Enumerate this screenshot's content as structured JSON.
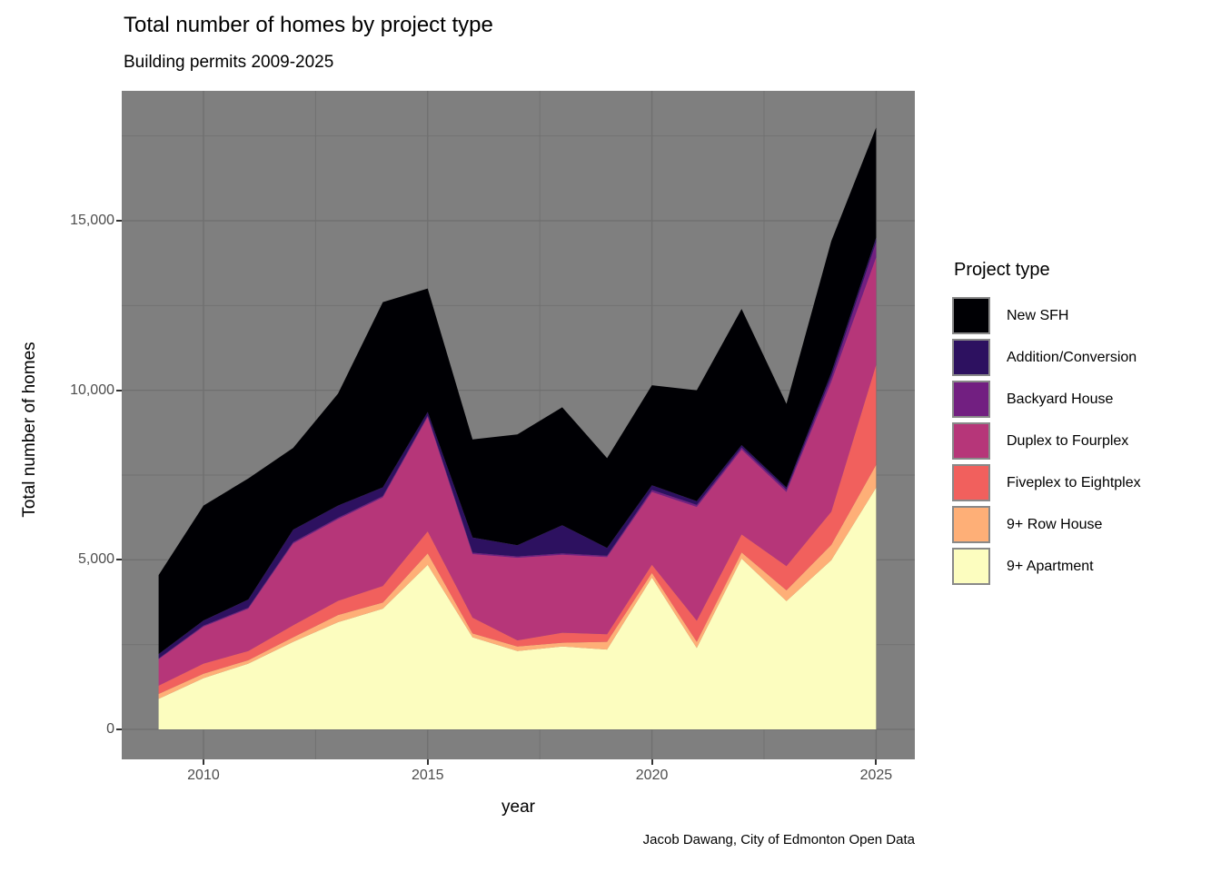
{
  "title": "Total number of homes by project type",
  "subtitle": "Building permits 2009-2025",
  "caption": "Jacob Dawang, City of Edmonton Open Data",
  "axes": {
    "x": {
      "label": "year",
      "tick_labels": [
        "2010",
        "2015",
        "2020",
        "2025"
      ],
      "tick_values": [
        2010,
        2015,
        2020,
        2025
      ],
      "minor_values": [
        2012.5,
        2017.5,
        2022.5
      ],
      "range": [
        2008.2,
        2025.8
      ]
    },
    "y": {
      "label": "Total number of homes",
      "tick_labels": [
        "0",
        "5,000",
        "10,000",
        "15,000"
      ],
      "tick_values": [
        0,
        5000,
        10000,
        15000
      ],
      "minor_values": [
        2500,
        7500,
        12500,
        17500
      ],
      "range": [
        -890,
        18830
      ]
    }
  },
  "legend": {
    "title": "Project type",
    "entries": [
      {
        "label": "New SFH",
        "color": "#000004"
      },
      {
        "label": "Addition/Conversion",
        "color": "#2D1160"
      },
      {
        "label": "Backyard House",
        "color": "#721F81"
      },
      {
        "label": "Duplex to Fourplex",
        "color": "#B63679"
      },
      {
        "label": "Fiveplex to Eightplex",
        "color": "#F1605D"
      },
      {
        "label": "9+ Row House",
        "color": "#FEAF77"
      },
      {
        "label": "9+ Apartment",
        "color": "#FCFDBF"
      }
    ]
  },
  "chart_data": {
    "type": "area",
    "stacked": true,
    "title": "Total number of homes by project type",
    "subtitle": "Building permits 2009-2025",
    "xlabel": "year",
    "ylabel": "Total number of homes",
    "legend_title": "Project type",
    "legend_position": "right",
    "grid": "on",
    "x": [
      2009,
      2010,
      2011,
      2012,
      2013,
      2014,
      2015,
      2016,
      2017,
      2018,
      2019,
      2020,
      2021,
      2022,
      2023,
      2024,
      2025
    ],
    "series": [
      {
        "name": "New SFH",
        "color": "#000004",
        "values": [
          2330,
          3390,
          3570,
          2410,
          3300,
          5460,
          3640,
          2890,
          3270,
          3480,
          2650,
          2950,
          3270,
          4015,
          2465,
          3880,
          3250
        ]
      },
      {
        "name": "Addition/Conversion",
        "color": "#2D1160",
        "values": [
          130,
          150,
          240,
          370,
          360,
          260,
          110,
          450,
          330,
          830,
          230,
          140,
          110,
          75,
          65,
          130,
          130
        ]
      },
      {
        "name": "Backyard House",
        "color": "#721F81",
        "values": [
          20,
          30,
          30,
          40,
          40,
          40,
          40,
          40,
          40,
          40,
          40,
          60,
          60,
          60,
          70,
          140,
          450
        ]
      },
      {
        "name": "Duplex to Fourplex",
        "color": "#B63679",
        "values": [
          780,
          1090,
          1250,
          2410,
          2410,
          2610,
          3370,
          1875,
          2435,
          2300,
          2275,
          2145,
          3355,
          2500,
          2185,
          3830,
          3170
        ]
      },
      {
        "name": "Fiveplex to Eightplex",
        "color": "#F1605D",
        "values": [
          245,
          300,
          270,
          355,
          420,
          490,
          650,
          465,
          180,
          295,
          225,
          240,
          625,
          535,
          715,
          980,
          2950
        ]
      },
      {
        "name": "9+ Row House",
        "color": "#FEAF77",
        "values": [
          145,
          130,
          100,
          135,
          210,
          180,
          340,
          115,
          135,
          110,
          225,
          140,
          180,
          180,
          315,
          450,
          670
        ]
      },
      {
        "name": "9+ Apartment",
        "color": "#FCFDBF",
        "values": [
          900,
          1510,
          1940,
          2580,
          3160,
          3560,
          4850,
          2715,
          2310,
          2445,
          2355,
          4475,
          2400,
          5035,
          3785,
          4990,
          7130
        ]
      }
    ],
    "totals": [
      4550,
      6600,
      7400,
      8300,
      9900,
      12600,
      13000,
      8550,
      8700,
      9500,
      8000,
      10150,
      10000,
      12400,
      9600,
      14400,
      17750
    ],
    "stack_note": "series listed top-of-stack first; 9+ Apartment is the bottom band"
  },
  "colors": {
    "page_bg": "#FFFFFF",
    "panel_bg": "#7F7F7F",
    "grid": "#707070",
    "tick_text": "#4D4D4D",
    "axis_tick": "#333333",
    "legend_key_border": "#898989",
    "text": "#000000"
  }
}
